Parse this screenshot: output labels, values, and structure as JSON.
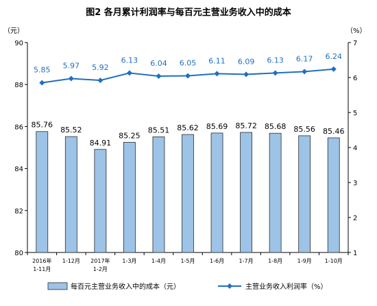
{
  "chart_data": {
    "type": "bar+line",
    "title": "图2  各月累计利润率与每百元主营业务收入中的成本",
    "left_unit": "（元）",
    "right_unit": "（%）",
    "categories": [
      [
        "2016年",
        "1-11月"
      ],
      [
        "1-12月"
      ],
      [
        "2017年",
        "1-2月"
      ],
      [
        "1-3月"
      ],
      [
        "1-4月"
      ],
      [
        "1-5月"
      ],
      [
        "1-6月"
      ],
      [
        "1-7月"
      ],
      [
        "1-8月"
      ],
      [
        "1-9月"
      ],
      [
        "1-10月"
      ]
    ],
    "series": [
      {
        "name": "每百元主营业务收入中的成本（元）",
        "type": "bar",
        "axis": "left",
        "color": "#9dc3e6",
        "values": [
          85.76,
          85.52,
          84.91,
          85.25,
          85.51,
          85.62,
          85.69,
          85.72,
          85.68,
          85.56,
          85.46
        ],
        "labels": [
          "85.76",
          "85.52",
          "84.91",
          "85.25",
          "85.51",
          "85.62",
          "85.69",
          "85.72",
          "85.68",
          "85.56",
          "85.46"
        ]
      },
      {
        "name": "主营业务收入利润率（%）",
        "type": "line",
        "axis": "right",
        "color": "#1f6fc1",
        "values": [
          5.85,
          5.97,
          5.92,
          6.13,
          6.04,
          6.05,
          6.11,
          6.09,
          6.13,
          6.17,
          6.24
        ],
        "labels": [
          "5.85",
          "5.97",
          "5.92",
          "6.13",
          "6.04",
          "6.05",
          "6.11",
          "6.09",
          "6.13",
          "6.17",
          "6.24"
        ]
      }
    ],
    "left_axis": {
      "range": [
        80,
        90
      ],
      "ticks": [
        80,
        82,
        84,
        86,
        88,
        90
      ]
    },
    "right_axis": {
      "range": [
        1,
        7
      ],
      "ticks": [
        1,
        2,
        3,
        4,
        5,
        6,
        7
      ]
    },
    "grid": false,
    "legend_position": "bottom"
  }
}
